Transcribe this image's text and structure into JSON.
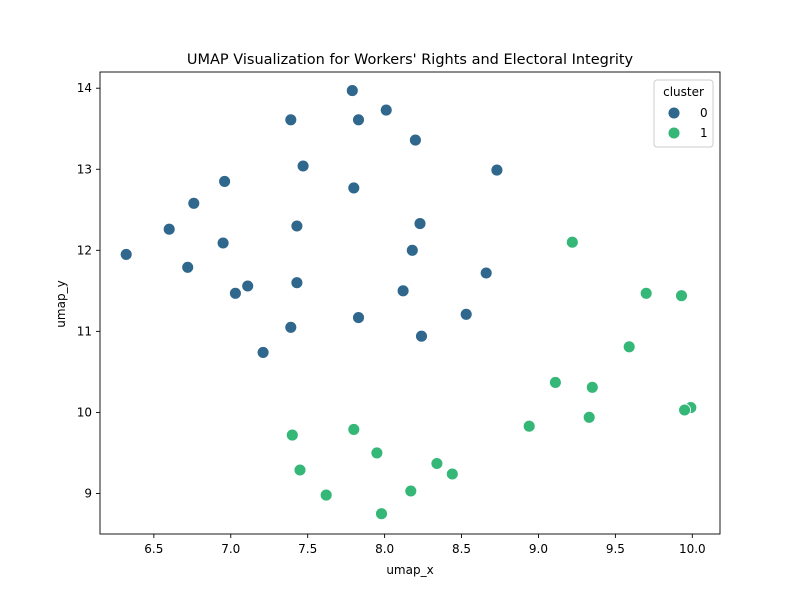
{
  "chart_data": {
    "type": "scatter",
    "title": "UMAP Visualization for Workers' Rights and Electoral Integrity",
    "xlabel": "umap_x",
    "ylabel": "umap_y",
    "xlim": [
      6.15,
      10.18
    ],
    "ylim": [
      8.5,
      14.2
    ],
    "xticks": [
      "6.5",
      "7.0",
      "7.5",
      "8.0",
      "8.5",
      "9.0",
      "9.5",
      "10.0"
    ],
    "yticks": [
      "9",
      "10",
      "11",
      "12",
      "13",
      "14"
    ],
    "grid": false,
    "legend": {
      "title": "cluster",
      "placement": "top-right",
      "entries": [
        "0",
        "1"
      ]
    },
    "colors": {
      "0": "#30678d",
      "1": "#35b778"
    },
    "series": [
      {
        "name": "0",
        "points": [
          [
            7.79,
            13.97
          ],
          [
            8.01,
            13.73
          ],
          [
            7.39,
            13.61
          ],
          [
            7.83,
            13.61
          ],
          [
            8.2,
            13.36
          ],
          [
            7.47,
            13.04
          ],
          [
            8.73,
            12.99
          ],
          [
            6.96,
            12.85
          ],
          [
            7.8,
            12.77
          ],
          [
            6.76,
            12.58
          ],
          [
            8.23,
            12.33
          ],
          [
            7.43,
            12.3
          ],
          [
            6.6,
            12.26
          ],
          [
            6.95,
            12.09
          ],
          [
            8.18,
            12.0
          ],
          [
            6.32,
            11.95
          ],
          [
            6.72,
            11.79
          ],
          [
            8.66,
            11.72
          ],
          [
            7.43,
            11.6
          ],
          [
            7.11,
            11.56
          ],
          [
            7.03,
            11.47
          ],
          [
            8.12,
            11.5
          ],
          [
            8.53,
            11.21
          ],
          [
            7.83,
            11.17
          ],
          [
            7.39,
            11.05
          ],
          [
            8.24,
            10.94
          ],
          [
            7.21,
            10.74
          ]
        ]
      },
      {
        "name": "1",
        "points": [
          [
            9.22,
            12.1
          ],
          [
            9.7,
            11.47
          ],
          [
            9.93,
            11.44
          ],
          [
            9.59,
            10.81
          ],
          [
            9.11,
            10.37
          ],
          [
            9.35,
            10.31
          ],
          [
            9.99,
            10.06
          ],
          [
            9.95,
            10.03
          ],
          [
            9.33,
            9.94
          ],
          [
            8.94,
            9.83
          ],
          [
            7.4,
            9.72
          ],
          [
            7.8,
            9.79
          ],
          [
            7.95,
            9.5
          ],
          [
            8.34,
            9.37
          ],
          [
            8.44,
            9.24
          ],
          [
            7.45,
            9.29
          ],
          [
            7.62,
            8.98
          ],
          [
            8.17,
            9.03
          ],
          [
            7.98,
            8.75
          ]
        ]
      }
    ]
  }
}
